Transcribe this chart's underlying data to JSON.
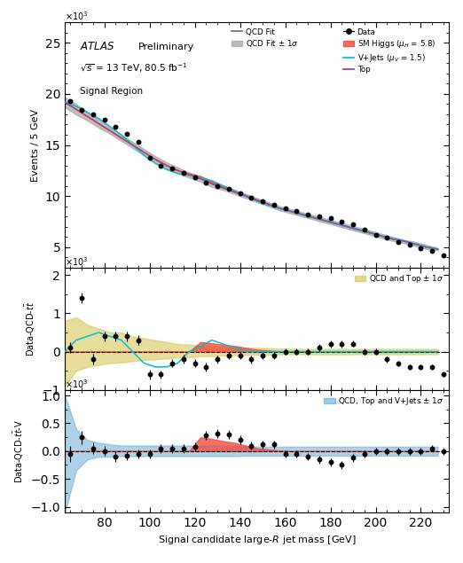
{
  "xmin": 62.5,
  "xmax": 232.5,
  "bin_width": 5,
  "bins_centers": [
    65,
    70,
    75,
    80,
    85,
    90,
    95,
    100,
    105,
    110,
    115,
    120,
    125,
    130,
    135,
    140,
    145,
    150,
    155,
    160,
    165,
    170,
    175,
    180,
    185,
    190,
    195,
    200,
    205,
    210,
    215,
    220,
    225,
    230
  ],
  "bin_edges": [
    62.5,
    67.5,
    72.5,
    77.5,
    82.5,
    87.5,
    92.5,
    97.5,
    102.5,
    107.5,
    112.5,
    117.5,
    122.5,
    127.5,
    132.5,
    137.5,
    142.5,
    147.5,
    152.5,
    157.5,
    162.5,
    167.5,
    172.5,
    177.5,
    182.5,
    187.5,
    192.5,
    197.5,
    202.5,
    207.5,
    212.5,
    217.5,
    222.5,
    227.5
  ],
  "data": [
    19.3,
    18.4,
    18.0,
    17.5,
    16.8,
    16.1,
    15.3,
    13.7,
    13.0,
    12.7,
    12.3,
    11.8,
    11.3,
    11.0,
    10.7,
    10.3,
    9.8,
    9.5,
    9.1,
    8.8,
    8.5,
    8.2,
    8.0,
    7.8,
    7.5,
    7.2,
    6.7,
    6.2,
    5.9,
    5.5,
    5.2,
    4.9,
    4.6,
    4.2
  ],
  "data_err": [
    0.14,
    0.14,
    0.13,
    0.13,
    0.13,
    0.13,
    0.12,
    0.12,
    0.11,
    0.11,
    0.11,
    0.11,
    0.11,
    0.1,
    0.1,
    0.1,
    0.1,
    0.1,
    0.1,
    0.09,
    0.09,
    0.09,
    0.09,
    0.09,
    0.09,
    0.08,
    0.08,
    0.08,
    0.08,
    0.07,
    0.07,
    0.07,
    0.07,
    0.06
  ],
  "qcd_fit": [
    19.2,
    18.5,
    17.8,
    17.1,
    16.4,
    15.7,
    15.0,
    14.3,
    13.6,
    13.0,
    12.5,
    12.1,
    11.7,
    11.2,
    10.8,
    10.4,
    10.0,
    9.6,
    9.2,
    8.8,
    8.5,
    8.2,
    7.9,
    7.6,
    7.3,
    7.0,
    6.7,
    6.4,
    6.1,
    5.8,
    5.6,
    5.3,
    5.0,
    4.8
  ],
  "qcd_fit_upper": [
    19.7,
    19.0,
    18.2,
    17.5,
    16.7,
    16.0,
    15.3,
    14.6,
    13.9,
    13.3,
    12.8,
    12.3,
    11.9,
    11.5,
    11.0,
    10.6,
    10.2,
    9.8,
    9.4,
    9.0,
    8.7,
    8.4,
    8.1,
    7.8,
    7.5,
    7.2,
    6.9,
    6.6,
    6.3,
    6.0,
    5.7,
    5.5,
    5.2,
    4.9
  ],
  "qcd_fit_lower": [
    18.7,
    18.0,
    17.4,
    16.7,
    16.1,
    15.4,
    14.7,
    14.0,
    13.3,
    12.7,
    12.2,
    11.8,
    11.4,
    10.9,
    10.6,
    10.2,
    9.8,
    9.4,
    9.0,
    8.6,
    8.3,
    8.0,
    7.7,
    7.4,
    7.1,
    6.8,
    6.5,
    6.2,
    5.9,
    5.6,
    5.4,
    5.1,
    4.8,
    4.7
  ],
  "vjets": [
    19.2,
    18.8,
    18.2,
    17.6,
    16.8,
    16.0,
    15.0,
    14.0,
    13.2,
    12.6,
    12.2,
    12.0,
    11.8,
    11.5,
    11.0,
    10.5,
    10.0,
    9.5,
    9.1,
    8.8,
    8.5,
    8.2,
    7.9,
    7.6,
    7.3,
    7.0,
    6.7,
    6.4,
    6.1,
    5.8,
    5.6,
    5.3,
    5.0,
    4.8
  ],
  "higgs": [
    0,
    0,
    0,
    0,
    0,
    0,
    0,
    0,
    0,
    0,
    0,
    0.12,
    0.25,
    0.22,
    0.18,
    0.15,
    0.1,
    0.05,
    0.03,
    0.01,
    0,
    0,
    0,
    0,
    0,
    0,
    0,
    0,
    0,
    0,
    0,
    0,
    0,
    0
  ],
  "res2_data": [
    0.1,
    1.4,
    -0.2,
    0.4,
    0.4,
    0.4,
    0.3,
    -0.6,
    -0.6,
    -0.3,
    -0.2,
    -0.3,
    -0.4,
    -0.2,
    -0.1,
    -0.1,
    -0.2,
    -0.1,
    -0.1,
    0,
    0,
    0,
    0.1,
    0.2,
    0.2,
    0.2,
    0,
    0,
    -0.2,
    -0.3,
    -0.4,
    -0.4,
    -0.4,
    -0.6
  ],
  "res2_err": [
    0.14,
    0.14,
    0.14,
    0.13,
    0.13,
    0.13,
    0.12,
    0.12,
    0.11,
    0.11,
    0.11,
    0.11,
    0.11,
    0.1,
    0.1,
    0.1,
    0.1,
    0.1,
    0.1,
    0.09,
    0.09,
    0.09,
    0.09,
    0.09,
    0.09,
    0.08,
    0.08,
    0.08,
    0.08,
    0.07,
    0.07,
    0.07,
    0.07,
    0.06
  ],
  "res2_vjets": [
    0,
    0.3,
    0.4,
    0.5,
    0.4,
    0.3,
    0.0,
    -0.3,
    -0.4,
    -0.4,
    -0.3,
    -0.0,
    0.13,
    0.3,
    0.2,
    0.1,
    0.0,
    0,
    0,
    0,
    0,
    0,
    0,
    0,
    0,
    0,
    0,
    0,
    0,
    0,
    0,
    0,
    0,
    0
  ],
  "res2_higgs": [
    0,
    0,
    0,
    0,
    0,
    0,
    0,
    0,
    0,
    0,
    0,
    0,
    0.25,
    0.22,
    0.18,
    0.15,
    0.1,
    0.05,
    0.03,
    0.01,
    0,
    0,
    0,
    0,
    0,
    0,
    0,
    0,
    0,
    0,
    0,
    0,
    0,
    0
  ],
  "res2_upper": [
    0.8,
    0.9,
    0.7,
    0.6,
    0.5,
    0.5,
    0.4,
    0.35,
    0.3,
    0.25,
    0.2,
    0.18,
    0.15,
    0.15,
    0.12,
    0.1,
    0.1,
    0.1,
    0.09,
    0.08,
    0.07,
    0.07,
    0.07,
    0.07,
    0.07,
    0.07,
    0.07,
    0.07,
    0.07,
    0.07,
    0.07,
    0.07,
    0.07,
    0.07
  ],
  "res2_lower": [
    -0.9,
    -0.5,
    -0.4,
    -0.35,
    -0.3,
    -0.28,
    -0.25,
    -0.22,
    -0.2,
    -0.18,
    -0.15,
    -0.15,
    -0.12,
    -0.12,
    -0.1,
    -0.1,
    -0.09,
    -0.08,
    -0.08,
    -0.07,
    -0.07,
    -0.07,
    -0.07,
    -0.07,
    -0.07,
    -0.07,
    -0.07,
    -0.07,
    -0.07,
    -0.07,
    -0.07,
    -0.07,
    -0.07,
    -0.07
  ],
  "res3_data": [
    -0.05,
    0.25,
    0.05,
    0.0,
    -0.1,
    -0.08,
    -0.05,
    -0.05,
    0.05,
    0.05,
    0.05,
    0.07,
    0.28,
    0.32,
    0.3,
    0.2,
    0.1,
    0.12,
    0.12,
    -0.05,
    -0.05,
    -0.1,
    -0.15,
    -0.2,
    -0.25,
    -0.12,
    -0.05,
    0.0,
    0.0,
    0.0,
    0.0,
    0.0,
    0.05,
    0.0
  ],
  "res3_err": [
    0.14,
    0.12,
    0.1,
    0.09,
    0.09,
    0.08,
    0.08,
    0.08,
    0.08,
    0.08,
    0.08,
    0.08,
    0.08,
    0.08,
    0.08,
    0.08,
    0.07,
    0.07,
    0.07,
    0.07,
    0.07,
    0.07,
    0.07,
    0.07,
    0.07,
    0.07,
    0.06,
    0.06,
    0.06,
    0.06,
    0.06,
    0.06,
    0.06,
    0.06
  ],
  "res3_higgs": [
    0,
    0,
    0,
    0,
    0,
    0,
    0,
    0,
    0,
    0,
    0,
    0,
    0.25,
    0.22,
    0.18,
    0.15,
    0.1,
    0.05,
    0.03,
    0.01,
    0,
    0,
    0,
    0,
    0,
    0,
    0,
    0,
    0,
    0,
    0,
    0,
    0,
    0
  ],
  "res3_upper": [
    1.0,
    0.4,
    0.2,
    0.15,
    0.12,
    0.1,
    0.1,
    0.1,
    0.1,
    0.1,
    0.1,
    0.1,
    0.1,
    0.1,
    0.1,
    0.1,
    0.08,
    0.08,
    0.08,
    0.08,
    0.08,
    0.08,
    0.08,
    0.08,
    0.08,
    0.08,
    0.08,
    0.08,
    0.08,
    0.08,
    0.08,
    0.08,
    0.08,
    0.08
  ],
  "res3_lower": [
    -1.1,
    -0.35,
    -0.15,
    -0.1,
    -0.1,
    -0.09,
    -0.09,
    -0.09,
    -0.09,
    -0.09,
    -0.09,
    -0.09,
    -0.09,
    -0.09,
    -0.09,
    -0.09,
    -0.08,
    -0.08,
    -0.08,
    -0.08,
    -0.08,
    -0.08,
    -0.08,
    -0.08,
    -0.08,
    -0.08,
    -0.08,
    -0.08,
    -0.08,
    -0.08,
    -0.08,
    -0.08,
    -0.08,
    -0.08
  ],
  "main_ylim": [
    3,
    27
  ],
  "res2_ylim": [
    -1.0,
    2.2
  ],
  "res3_ylim": [
    -1.1,
    1.1
  ],
  "xlabel": "Signal candidate large-$R$ jet mass [GeV]",
  "ylabel_main": "Events / 5 GeV",
  "ylabel_res2": "Data-QCD-$t\\bar{t}$",
  "ylabel_res3": "Data-QCD-$t\\bar{t}$-V",
  "color_data": "#000000",
  "color_qcd": "#666666",
  "color_qcd_band": "#aaaaaa",
  "color_vjets": "#00bcd4",
  "color_higgs": "#f44336",
  "color_top": "#9c27b0",
  "color_yellow_band": "#d4c44c",
  "color_blue_band": "#6baed6"
}
